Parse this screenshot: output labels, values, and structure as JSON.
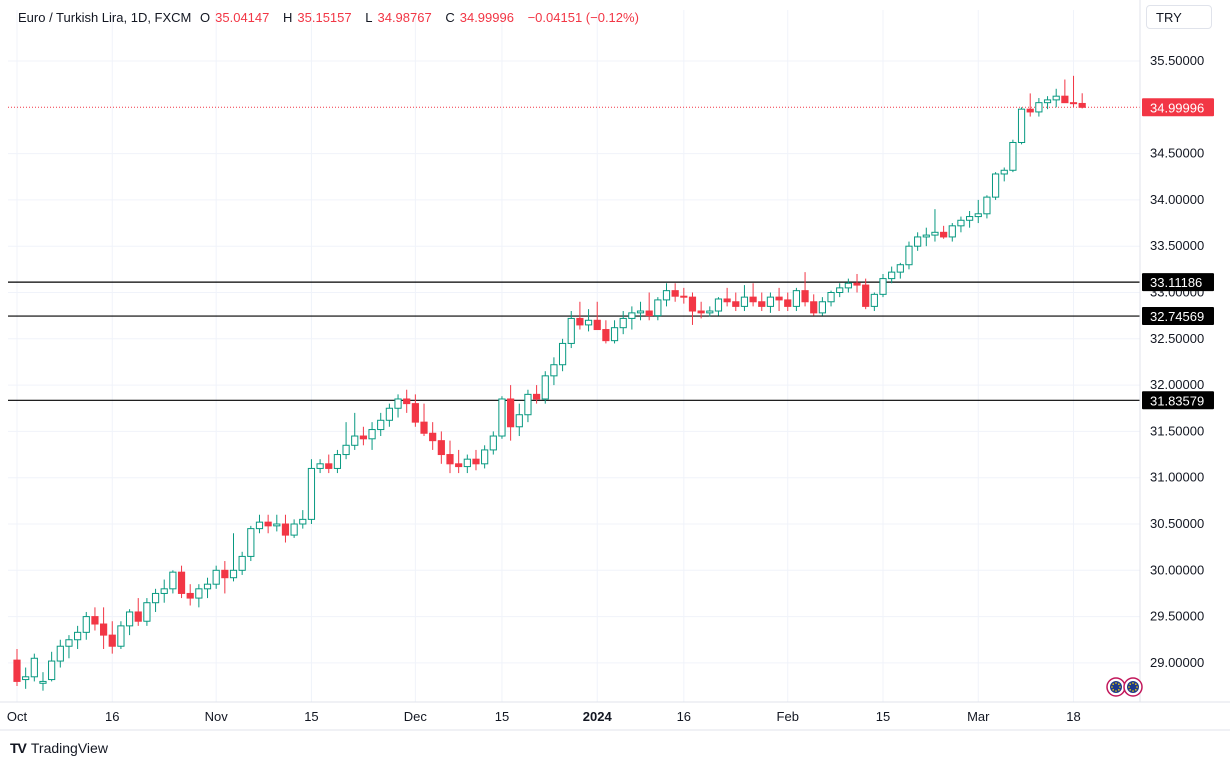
{
  "header": {
    "title": "Euro / Turkish Lira, 1D, FXCM",
    "o_label": "O",
    "o_value": "35.04147",
    "h_label": "H",
    "h_value": "35.15157",
    "l_label": "L",
    "l_value": "34.98767",
    "c_label": "C",
    "c_value": "34.99996",
    "change": "−0.04151 (−0.12%)"
  },
  "currency_button": "TRY",
  "brand": {
    "name": "TradingView",
    "logo": "TV"
  },
  "colors": {
    "up": "#089981",
    "down": "#f23645",
    "grid": "#f0f3fa",
    "axis_text": "#131722",
    "hline": "#000000",
    "last_price": "#f23645"
  },
  "chart_data": {
    "type": "candlestick",
    "ylim": [
      28.75,
      35.75
    ],
    "y_ticks": [
      "35.50000",
      "34.50000",
      "34.00000",
      "33.50000",
      "33.00000",
      "32.50000",
      "32.00000",
      "31.50000",
      "31.00000",
      "30.50000",
      "30.00000",
      "29.50000",
      "29.00000"
    ],
    "y_tick_values": [
      35.5,
      34.5,
      34.0,
      33.5,
      33.0,
      32.5,
      32.0,
      31.5,
      31.0,
      30.5,
      30.0,
      29.5,
      29.0
    ],
    "x_ticks": [
      {
        "label": "Oct",
        "index": 0,
        "bold": false
      },
      {
        "label": "16",
        "index": 11,
        "bold": false
      },
      {
        "label": "Nov",
        "index": 23,
        "bold": false
      },
      {
        "label": "15",
        "index": 34,
        "bold": false
      },
      {
        "label": "Dec",
        "index": 46,
        "bold": false
      },
      {
        "label": "15",
        "index": 56,
        "bold": false
      },
      {
        "label": "2024",
        "index": 67,
        "bold": true
      },
      {
        "label": "16",
        "index": 77,
        "bold": false
      },
      {
        "label": "Feb",
        "index": 89,
        "bold": false
      },
      {
        "label": "15",
        "index": 100,
        "bold": false
      },
      {
        "label": "Mar",
        "index": 111,
        "bold": false
      },
      {
        "label": "18",
        "index": 122,
        "bold": false
      }
    ],
    "horizontal_lines": [
      {
        "value": 33.11186,
        "label": "33.11186"
      },
      {
        "value": 32.74569,
        "label": "32.74569"
      },
      {
        "value": 31.83579,
        "label": "31.83579"
      }
    ],
    "last_price": {
      "value": 34.99996,
      "label": "34.99996"
    },
    "candles": [
      [
        29.03,
        29.15,
        28.75,
        28.8
      ],
      [
        28.82,
        28.95,
        28.72,
        28.85
      ],
      [
        28.85,
        29.1,
        28.8,
        29.05
      ],
      [
        28.78,
        28.9,
        28.7,
        28.8
      ],
      [
        28.82,
        29.12,
        28.8,
        29.02
      ],
      [
        29.02,
        29.25,
        28.95,
        29.18
      ],
      [
        29.18,
        29.3,
        29.05,
        29.25
      ],
      [
        29.25,
        29.4,
        29.15,
        29.33
      ],
      [
        29.33,
        29.55,
        29.25,
        29.5
      ],
      [
        29.5,
        29.6,
        29.35,
        29.42
      ],
      [
        29.42,
        29.6,
        29.15,
        29.3
      ],
      [
        29.3,
        29.45,
        29.1,
        29.18
      ],
      [
        29.18,
        29.45,
        29.15,
        29.4
      ],
      [
        29.4,
        29.58,
        29.3,
        29.55
      ],
      [
        29.55,
        29.7,
        29.4,
        29.45
      ],
      [
        29.45,
        29.7,
        29.4,
        29.65
      ],
      [
        29.65,
        29.8,
        29.55,
        29.75
      ],
      [
        29.75,
        29.9,
        29.65,
        29.8
      ],
      [
        29.8,
        30.0,
        29.75,
        29.98
      ],
      [
        29.98,
        30.05,
        29.7,
        29.75
      ],
      [
        29.75,
        29.85,
        29.62,
        29.7
      ],
      [
        29.7,
        29.85,
        29.6,
        29.8
      ],
      [
        29.8,
        29.92,
        29.7,
        29.85
      ],
      [
        29.85,
        30.05,
        29.8,
        30.0
      ],
      [
        30.0,
        30.1,
        29.75,
        29.92
      ],
      [
        29.92,
        30.4,
        29.88,
        30.0
      ],
      [
        30.0,
        30.2,
        29.95,
        30.15
      ],
      [
        30.15,
        30.48,
        30.1,
        30.45
      ],
      [
        30.45,
        30.6,
        30.4,
        30.52
      ],
      [
        30.52,
        30.6,
        30.4,
        30.48
      ],
      [
        30.48,
        30.6,
        30.42,
        30.5
      ],
      [
        30.5,
        30.6,
        30.3,
        30.38
      ],
      [
        30.38,
        30.55,
        30.35,
        30.5
      ],
      [
        30.5,
        30.65,
        30.45,
        30.55
      ],
      [
        30.55,
        31.2,
        30.5,
        31.1
      ],
      [
        31.1,
        31.2,
        31.05,
        31.15
      ],
      [
        31.15,
        31.25,
        31.05,
        31.1
      ],
      [
        31.1,
        31.3,
        31.05,
        31.25
      ],
      [
        31.25,
        31.6,
        31.2,
        31.35
      ],
      [
        31.35,
        31.7,
        31.3,
        31.45
      ],
      [
        31.45,
        31.55,
        31.35,
        31.42
      ],
      [
        31.42,
        31.6,
        31.3,
        31.52
      ],
      [
        31.52,
        31.7,
        31.45,
        31.62
      ],
      [
        31.62,
        31.8,
        31.55,
        31.75
      ],
      [
        31.75,
        31.9,
        31.65,
        31.85
      ],
      [
        31.85,
        31.95,
        31.7,
        31.8
      ],
      [
        31.8,
        31.9,
        31.55,
        31.6
      ],
      [
        31.6,
        31.8,
        31.45,
        31.48
      ],
      [
        31.48,
        31.6,
        31.3,
        31.4
      ],
      [
        31.4,
        31.5,
        31.15,
        31.25
      ],
      [
        31.25,
        31.4,
        31.05,
        31.15
      ],
      [
        31.15,
        31.3,
        31.05,
        31.12
      ],
      [
        31.12,
        31.25,
        31.05,
        31.2
      ],
      [
        31.2,
        31.3,
        31.08,
        31.15
      ],
      [
        31.15,
        31.35,
        31.1,
        31.3
      ],
      [
        31.3,
        31.5,
        31.25,
        31.45
      ],
      [
        31.45,
        31.88,
        31.42,
        31.85
      ],
      [
        31.85,
        32.0,
        31.4,
        31.55
      ],
      [
        31.55,
        31.8,
        31.45,
        31.68
      ],
      [
        31.68,
        31.95,
        31.6,
        31.9
      ],
      [
        31.9,
        32.0,
        31.8,
        31.85
      ],
      [
        31.85,
        32.15,
        31.8,
        32.1
      ],
      [
        32.1,
        32.3,
        32.0,
        32.22
      ],
      [
        32.22,
        32.5,
        32.15,
        32.45
      ],
      [
        32.45,
        32.8,
        32.4,
        32.72
      ],
      [
        32.72,
        32.9,
        32.6,
        32.65
      ],
      [
        32.65,
        32.82,
        32.58,
        32.7
      ],
      [
        32.7,
        32.9,
        32.6,
        32.6
      ],
      [
        32.6,
        32.7,
        32.45,
        32.48
      ],
      [
        32.48,
        32.7,
        32.45,
        32.62
      ],
      [
        32.62,
        32.8,
        32.55,
        32.72
      ],
      [
        32.72,
        32.85,
        32.6,
        32.78
      ],
      [
        32.78,
        32.9,
        32.7,
        32.8
      ],
      [
        32.8,
        33.0,
        32.7,
        32.75
      ],
      [
        32.75,
        32.95,
        32.7,
        32.92
      ],
      [
        32.92,
        33.1,
        32.85,
        33.02
      ],
      [
        33.02,
        33.1,
        32.9,
        32.96
      ],
      [
        32.96,
        33.05,
        32.88,
        32.95
      ],
      [
        32.95,
        33.0,
        32.65,
        32.8
      ],
      [
        32.8,
        32.9,
        32.72,
        32.78
      ],
      [
        32.78,
        32.85,
        32.74,
        32.8
      ],
      [
        32.8,
        32.95,
        32.75,
        32.93
      ],
      [
        32.93,
        33.05,
        32.85,
        32.9
      ],
      [
        32.9,
        33.0,
        32.8,
        32.85
      ],
      [
        32.85,
        33.08,
        32.8,
        32.95
      ],
      [
        32.95,
        33.1,
        32.85,
        32.9
      ],
      [
        32.9,
        33.0,
        32.8,
        32.85
      ],
      [
        32.85,
        33.0,
        32.78,
        32.95
      ],
      [
        32.95,
        33.05,
        32.8,
        32.92
      ],
      [
        32.92,
        33.0,
        32.8,
        32.85
      ],
      [
        32.85,
        33.05,
        32.8,
        33.02
      ],
      [
        33.02,
        33.22,
        32.85,
        32.9
      ],
      [
        32.9,
        32.98,
        32.75,
        32.78
      ],
      [
        32.78,
        32.95,
        32.75,
        32.9
      ],
      [
        32.9,
        33.02,
        32.85,
        33.0
      ],
      [
        33.0,
        33.1,
        32.95,
        33.05
      ],
      [
        33.05,
        33.15,
        33.0,
        33.1
      ],
      [
        33.1,
        33.2,
        33.0,
        33.08
      ],
      [
        33.08,
        33.15,
        32.82,
        32.85
      ],
      [
        32.85,
        33.0,
        32.8,
        32.98
      ],
      [
        32.98,
        33.2,
        32.95,
        33.15
      ],
      [
        33.15,
        33.28,
        33.1,
        33.22
      ],
      [
        33.22,
        33.32,
        33.15,
        33.3
      ],
      [
        33.3,
        33.55,
        33.25,
        33.5
      ],
      [
        33.5,
        33.65,
        33.45,
        33.6
      ],
      [
        33.6,
        33.7,
        33.5,
        33.62
      ],
      [
        33.62,
        33.9,
        33.55,
        33.65
      ],
      [
        33.65,
        33.72,
        33.58,
        33.6
      ],
      [
        33.6,
        33.75,
        33.55,
        33.72
      ],
      [
        33.72,
        33.82,
        33.65,
        33.78
      ],
      [
        33.78,
        33.88,
        33.7,
        33.82
      ],
      [
        33.82,
        34.0,
        33.75,
        33.85
      ],
      [
        33.85,
        34.05,
        33.8,
        34.03
      ],
      [
        34.03,
        34.3,
        34.0,
        34.28
      ],
      [
        34.28,
        34.35,
        34.2,
        34.32
      ],
      [
        34.32,
        34.65,
        34.3,
        34.62
      ],
      [
        34.62,
        35.0,
        34.6,
        34.98
      ],
      [
        34.98,
        35.15,
        34.9,
        34.95
      ],
      [
        34.95,
        35.1,
        34.9,
        35.05
      ],
      [
        35.05,
        35.12,
        34.98,
        35.08
      ],
      [
        35.08,
        35.2,
        35.0,
        35.12
      ],
      [
        35.12,
        35.3,
        35.05,
        35.05
      ],
      [
        35.05,
        35.34,
        35.0,
        35.04
      ],
      [
        35.04147,
        35.15157,
        34.98767,
        34.99996
      ]
    ]
  }
}
